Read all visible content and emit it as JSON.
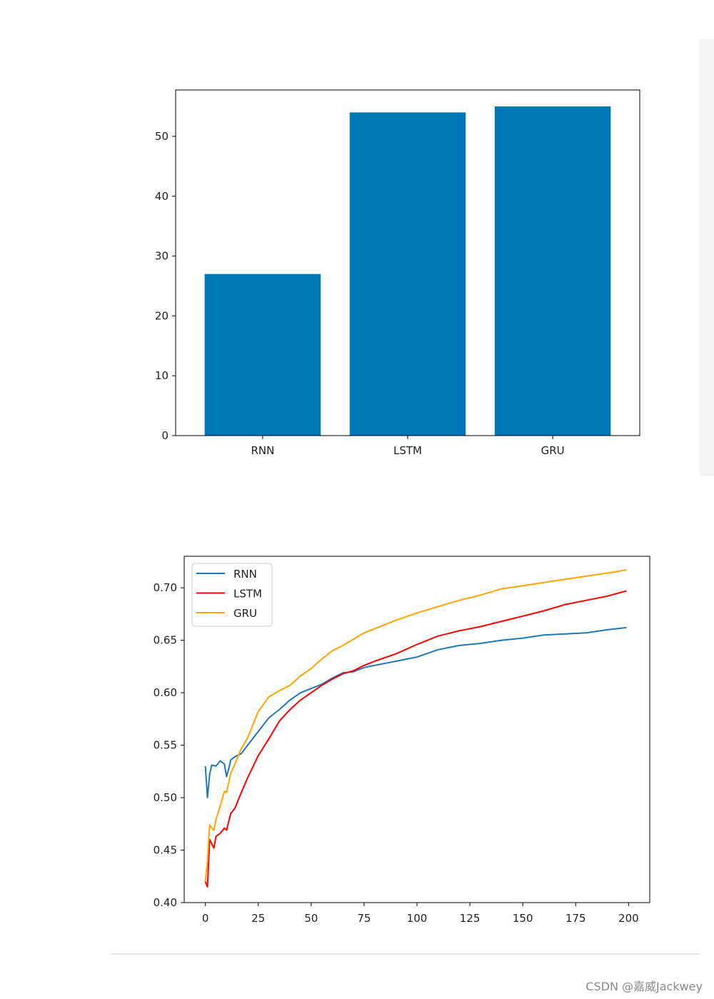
{
  "watermark": "CSDN @嘉威Jackwey",
  "chart_data": [
    {
      "type": "bar",
      "categories": [
        "RNN",
        "LSTM",
        "GRU"
      ],
      "values": [
        27,
        54,
        55
      ],
      "ylim": [
        0,
        57.75
      ],
      "yticks": [
        0,
        10,
        20,
        30,
        40,
        50
      ],
      "grid": false,
      "colors": [
        "#0077b6"
      ]
    },
    {
      "type": "line",
      "xlim": [
        -10,
        210
      ],
      "ylim": [
        0.4,
        0.73
      ],
      "xticks": [
        0,
        25,
        50,
        75,
        100,
        125,
        150,
        175,
        200
      ],
      "yticks": [
        0.4,
        0.45,
        0.5,
        0.55,
        0.6,
        0.65,
        0.7
      ],
      "ytick_labels": [
        "0.40",
        "0.45",
        "0.50",
        "0.55",
        "0.60",
        "0.65",
        "0.70"
      ],
      "grid": false,
      "legend_position": "upper-left",
      "series": [
        {
          "name": "RNN",
          "color": "#1f77b4",
          "x": [
            0,
            1,
            2,
            3,
            5,
            7,
            9,
            10,
            11,
            12,
            14,
            17,
            20,
            25,
            30,
            35,
            40,
            45,
            50,
            55,
            60,
            65,
            70,
            75,
            80,
            90,
            100,
            110,
            120,
            130,
            140,
            150,
            160,
            170,
            180,
            190,
            199
          ],
          "y": [
            0.53,
            0.5,
            0.522,
            0.531,
            0.53,
            0.535,
            0.532,
            0.52,
            0.527,
            0.536,
            0.539,
            0.542,
            0.55,
            0.563,
            0.576,
            0.584,
            0.593,
            0.6,
            0.604,
            0.608,
            0.614,
            0.619,
            0.62,
            0.624,
            0.626,
            0.63,
            0.634,
            0.641,
            0.645,
            0.647,
            0.65,
            0.652,
            0.655,
            0.656,
            0.657,
            0.66,
            0.662
          ]
        },
        {
          "name": "LSTM",
          "color": "#ff0000",
          "x": [
            0,
            1,
            2,
            3,
            4,
            5,
            7,
            9,
            10,
            12,
            14,
            17,
            20,
            25,
            30,
            35,
            40,
            45,
            50,
            55,
            60,
            65,
            70,
            75,
            80,
            90,
            100,
            110,
            120,
            130,
            140,
            150,
            160,
            170,
            180,
            190,
            199
          ],
          "y": [
            0.42,
            0.415,
            0.46,
            0.456,
            0.452,
            0.463,
            0.466,
            0.471,
            0.469,
            0.485,
            0.49,
            0.505,
            0.519,
            0.54,
            0.556,
            0.573,
            0.584,
            0.593,
            0.6,
            0.607,
            0.613,
            0.618,
            0.621,
            0.626,
            0.63,
            0.637,
            0.646,
            0.654,
            0.659,
            0.663,
            0.668,
            0.673,
            0.678,
            0.684,
            0.688,
            0.692,
            0.697
          ]
        },
        {
          "name": "GRU",
          "color": "#ffa500",
          "x": [
            0,
            1,
            2,
            3,
            4,
            5,
            7,
            9,
            10,
            12,
            14,
            17,
            20,
            25,
            30,
            35,
            40,
            45,
            50,
            55,
            60,
            65,
            70,
            75,
            80,
            90,
            100,
            110,
            120,
            130,
            140,
            150,
            160,
            170,
            180,
            190,
            199
          ],
          "y": [
            0.42,
            0.44,
            0.474,
            0.471,
            0.469,
            0.479,
            0.492,
            0.506,
            0.505,
            0.523,
            0.532,
            0.547,
            0.557,
            0.582,
            0.596,
            0.602,
            0.607,
            0.616,
            0.623,
            0.632,
            0.64,
            0.645,
            0.651,
            0.657,
            0.661,
            0.669,
            0.676,
            0.682,
            0.688,
            0.693,
            0.699,
            0.702,
            0.705,
            0.708,
            0.711,
            0.714,
            0.717
          ]
        }
      ]
    }
  ]
}
